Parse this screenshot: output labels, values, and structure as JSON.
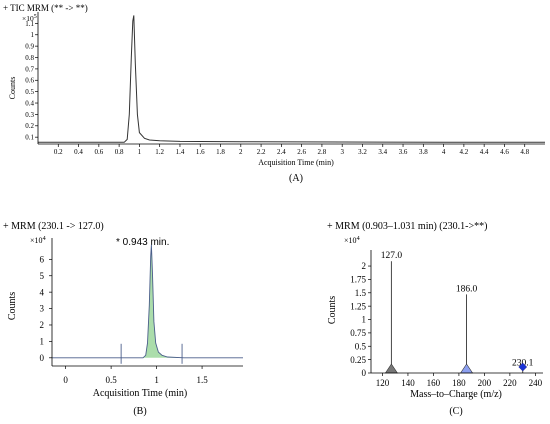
{
  "chart_data": [
    {
      "panel": "A",
      "type": "line",
      "title": "+ TIC MRM (** -> **)",
      "multiplier": "×10",
      "multiplier_exp": "5",
      "ylabel": "Counts",
      "xlabel": "Acquisition Time (min)",
      "caption": "(A)",
      "xlim": [
        0,
        5.0
      ],
      "ylim": [
        0.04,
        1.2
      ],
      "x_ticks": [
        0.2,
        0.4,
        0.6,
        0.8,
        1,
        1.2,
        1.4,
        1.6,
        1.8,
        2,
        2.2,
        2.4,
        2.6,
        2.8,
        3,
        3.2,
        3.4,
        3.6,
        3.8,
        4,
        4.2,
        4.4,
        4.6,
        4.8
      ],
      "x_tick_labels": [
        "0.2",
        "0.4",
        "0.6",
        "0.8",
        "1",
        "1.2",
        "1.4",
        "1.6",
        "1.8",
        "2",
        "2.2",
        "2.4",
        "2.6",
        "2.8",
        "3",
        "3.2",
        "3.4",
        "3.6",
        "3.8",
        "4",
        "4.2",
        "4.4",
        "4.6",
        "4.8"
      ],
      "y_ticks": [
        0.1,
        0.2,
        0.3,
        0.4,
        0.5,
        0.6,
        0.7,
        0.8,
        0.9,
        1,
        1.1
      ],
      "y_tick_labels": [
        "0.1",
        "0.2",
        "0.3",
        "0.4",
        "0.5",
        "0.6",
        "0.7",
        "0.8",
        "0.9",
        "1",
        "1.1"
      ],
      "series": [
        {
          "x": [
            0.0,
            0.85,
            0.88,
            0.9,
            0.92,
            0.935,
            0.945,
            0.96,
            0.98,
            1.0,
            1.05,
            1.1,
            1.2,
            1.4,
            2.0,
            3.0,
            4.0,
            5.0
          ],
          "y": [
            0.055,
            0.055,
            0.08,
            0.3,
            0.8,
            1.12,
            1.17,
            0.75,
            0.3,
            0.14,
            0.09,
            0.075,
            0.068,
            0.063,
            0.06,
            0.058,
            0.056,
            0.055
          ]
        }
      ]
    },
    {
      "panel": "B",
      "type": "line",
      "title": "+ MRM (230.1 -> 127.0)",
      "multiplier": "×10",
      "multiplier_exp": "4",
      "ylabel": "Counts",
      "xlabel": "Acquisition Time (min)",
      "caption": "(B)",
      "annotation": "* 0.943 min.",
      "xlim": [
        -0.15,
        1.95
      ],
      "ylim": [
        -0.5,
        7.3
      ],
      "x_ticks": [
        0,
        0.5,
        1,
        1.5
      ],
      "x_tick_labels": [
        "0",
        "0.5",
        "1",
        "1.5"
      ],
      "y_ticks": [
        0,
        1,
        2,
        3,
        4,
        5,
        6
      ],
      "y_tick_labels": [
        "0",
        "1",
        "2",
        "3",
        "4",
        "5",
        "6"
      ],
      "integration_markers_x": [
        0.61,
        1.28
      ],
      "series": [
        {
          "x": [
            -0.15,
            0.85,
            0.88,
            0.9,
            0.92,
            0.935,
            0.943,
            0.955,
            0.97,
            0.99,
            1.02,
            1.06,
            1.12,
            1.3,
            1.95
          ],
          "y": [
            0.0,
            0.0,
            0.15,
            0.9,
            3.2,
            6.2,
            6.9,
            5.1,
            2.2,
            0.9,
            0.35,
            0.15,
            0.05,
            0.0,
            0.0
          ]
        }
      ]
    },
    {
      "panel": "C",
      "type": "bar",
      "title": "+ MRM (0.903–1.031 min) (230.1->**)",
      "multiplier": "×10",
      "multiplier_exp": "4",
      "ylabel": "Counts",
      "xlabel": "Mass–to–Charge (m/z)",
      "caption": "(C)",
      "xlim": [
        111,
        246
      ],
      "ylim": [
        0,
        2.3
      ],
      "x_ticks": [
        120,
        140,
        160,
        180,
        200,
        220,
        240
      ],
      "x_tick_labels": [
        "120",
        "140",
        "160",
        "180",
        "200",
        "220",
        "240"
      ],
      "y_ticks": [
        0,
        0.25,
        0.5,
        0.75,
        1,
        1.25,
        1.5,
        1.75,
        2
      ],
      "y_tick_labels": [
        "0",
        "0.25",
        "0.5",
        "0.75",
        "1",
        "1.25",
        "1.5",
        "1.75",
        "2"
      ],
      "peaks": [
        {
          "mz": 127.0,
          "label": "127.0",
          "value": 2.09,
          "marker": "triangle",
          "color": "#777777"
        },
        {
          "mz": 186.0,
          "label": "186.0",
          "value": 1.47,
          "marker": "triangle",
          "color": "#8da0f0"
        },
        {
          "mz": 230.1,
          "label": "230.1",
          "value": 0.08,
          "marker": "diamond",
          "color": "#1a33d6"
        }
      ]
    }
  ]
}
